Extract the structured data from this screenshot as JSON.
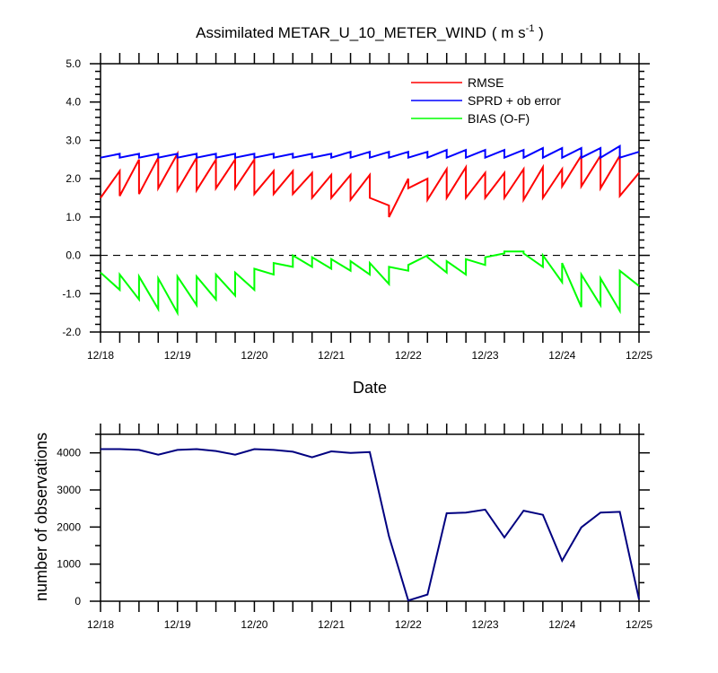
{
  "chart_data": [
    {
      "type": "line",
      "title": "Assimilated METAR_U_10_METER_WIND",
      "title_units_prefix": "( m s",
      "title_units_exp": "-1",
      "title_units_suffix": " )",
      "xlabel": "Date",
      "ylabel": "",
      "x_tick_labels": [
        "12/18",
        "12/19",
        "12/20",
        "12/21",
        "12/22",
        "12/23",
        "12/24",
        "12/25"
      ],
      "x_range": [
        0,
        7
      ],
      "ylim": [
        -2.0,
        5.0
      ],
      "y_ticks": [
        -2.0,
        -1.0,
        0.0,
        1.0,
        2.0,
        3.0,
        4.0,
        5.0
      ],
      "y_tick_labels": [
        "-2.0",
        "-1.0",
        "0.0",
        "1.0",
        "2.0",
        "3.0",
        "4.0",
        "5.0"
      ],
      "reference_line": {
        "y": 0.0,
        "style": "dashed"
      },
      "legend_position": "top-right",
      "series": [
        {
          "name": "RMSE",
          "color": "#ff0000",
          "x": [
            0.0,
            0.25,
            0.25,
            0.5,
            0.5,
            0.75,
            0.75,
            1.0,
            1.0,
            1.25,
            1.25,
            1.5,
            1.5,
            1.75,
            1.75,
            2.0,
            2.0,
            2.25,
            2.25,
            2.5,
            2.5,
            2.75,
            2.75,
            3.0,
            3.0,
            3.25,
            3.25,
            3.5,
            3.5,
            3.75,
            3.75,
            4.0,
            4.0,
            4.25,
            4.25,
            4.5,
            4.5,
            4.75,
            4.75,
            5.0,
            5.0,
            5.25,
            5.25,
            5.5,
            5.5,
            5.75,
            5.75,
            6.0,
            6.0,
            6.25,
            6.25,
            6.5,
            6.5,
            6.75,
            6.75,
            7.0
          ],
          "values": [
            1.5,
            2.2,
            1.55,
            2.5,
            1.6,
            2.55,
            1.75,
            2.65,
            1.7,
            2.55,
            1.7,
            2.5,
            1.75,
            2.5,
            1.75,
            2.5,
            1.6,
            2.2,
            1.6,
            2.2,
            1.6,
            2.15,
            1.5,
            2.1,
            1.5,
            2.1,
            1.45,
            2.1,
            1.5,
            1.3,
            1.0,
            2.0,
            1.75,
            2.0,
            1.45,
            2.25,
            1.5,
            2.3,
            1.5,
            2.15,
            1.5,
            2.15,
            1.5,
            2.25,
            1.45,
            2.3,
            1.5,
            2.25,
            1.8,
            2.6,
            1.8,
            2.6,
            1.75,
            2.6,
            1.55,
            2.15
          ]
        },
        {
          "name": "SPRD + ob error",
          "color": "#0000ff",
          "x": [
            0.0,
            0.25,
            0.25,
            0.5,
            0.5,
            0.75,
            0.75,
            1.0,
            1.0,
            1.25,
            1.25,
            1.5,
            1.5,
            1.75,
            1.75,
            2.0,
            2.0,
            2.25,
            2.25,
            2.5,
            2.5,
            2.75,
            2.75,
            3.0,
            3.0,
            3.25,
            3.25,
            3.5,
            3.5,
            3.75,
            3.75,
            4.0,
            4.0,
            4.25,
            4.25,
            4.5,
            4.5,
            4.75,
            4.75,
            5.0,
            5.0,
            5.25,
            5.25,
            5.5,
            5.5,
            5.75,
            5.75,
            6.0,
            6.0,
            6.25,
            6.25,
            6.5,
            6.5,
            6.75,
            6.75,
            7.0
          ],
          "values": [
            2.55,
            2.65,
            2.55,
            2.65,
            2.55,
            2.65,
            2.55,
            2.65,
            2.55,
            2.65,
            2.55,
            2.65,
            2.55,
            2.65,
            2.55,
            2.65,
            2.55,
            2.65,
            2.55,
            2.65,
            2.55,
            2.65,
            2.55,
            2.65,
            2.55,
            2.7,
            2.55,
            2.7,
            2.55,
            2.7,
            2.55,
            2.7,
            2.55,
            2.7,
            2.55,
            2.75,
            2.55,
            2.75,
            2.55,
            2.75,
            2.55,
            2.75,
            2.55,
            2.75,
            2.55,
            2.8,
            2.55,
            2.8,
            2.55,
            2.8,
            2.55,
            2.8,
            2.55,
            2.85,
            2.55,
            2.7
          ]
        },
        {
          "name": "BIAS (O-F)",
          "color": "#00ff00",
          "x": [
            0.0,
            0.25,
            0.25,
            0.5,
            0.5,
            0.75,
            0.75,
            1.0,
            1.0,
            1.25,
            1.25,
            1.5,
            1.5,
            1.75,
            1.75,
            2.0,
            2.0,
            2.25,
            2.25,
            2.5,
            2.5,
            2.75,
            2.75,
            3.0,
            3.0,
            3.25,
            3.25,
            3.5,
            3.5,
            3.75,
            3.75,
            4.0,
            4.0,
            4.25,
            4.25,
            4.5,
            4.5,
            4.75,
            4.75,
            5.0,
            5.0,
            5.25,
            5.25,
            5.5,
            5.5,
            5.75,
            5.75,
            6.0,
            6.0,
            6.25,
            6.25,
            6.5,
            6.5,
            6.75,
            6.75,
            7.0
          ],
          "values": [
            -0.45,
            -0.9,
            -0.5,
            -1.15,
            -0.55,
            -1.4,
            -0.6,
            -1.5,
            -0.55,
            -1.3,
            -0.55,
            -1.15,
            -0.5,
            -1.05,
            -0.45,
            -0.9,
            -0.35,
            -0.5,
            -0.2,
            -0.3,
            0.0,
            -0.3,
            -0.05,
            -0.35,
            -0.1,
            -0.4,
            -0.15,
            -0.5,
            -0.2,
            -0.75,
            -0.3,
            -0.4,
            -0.25,
            0.0,
            -0.05,
            -0.45,
            -0.15,
            -0.5,
            -0.1,
            -0.25,
            -0.05,
            0.05,
            0.1,
            0.1,
            0.05,
            -0.3,
            0.0,
            -0.7,
            -0.2,
            -1.35,
            -0.5,
            -1.3,
            -0.6,
            -1.45,
            -0.4,
            -0.8
          ]
        }
      ]
    },
    {
      "type": "line",
      "title": "",
      "xlabel": "",
      "ylabel": "number of observations",
      "x_tick_labels": [
        "12/18",
        "12/19",
        "12/20",
        "12/21",
        "12/22",
        "12/23",
        "12/24",
        "12/25"
      ],
      "x_range": [
        0,
        7
      ],
      "ylim": [
        0,
        4500
      ],
      "y_ticks": [
        0,
        1000,
        2000,
        3000,
        4000
      ],
      "y_tick_labels": [
        "0",
        "1000",
        "2000",
        "3000",
        "4000"
      ],
      "series": [
        {
          "name": "observations",
          "color": "#000080",
          "x": [
            0.0,
            0.25,
            0.5,
            0.75,
            1.0,
            1.25,
            1.5,
            1.75,
            2.0,
            2.25,
            2.5,
            2.75,
            3.0,
            3.25,
            3.5,
            3.75,
            4.0,
            4.25,
            4.5,
            4.75,
            5.0,
            5.25,
            5.5,
            5.75,
            6.0,
            6.25,
            6.5,
            6.75,
            7.0
          ],
          "values": [
            4100,
            4100,
            4080,
            3950,
            4080,
            4100,
            4050,
            3950,
            4100,
            4080,
            4030,
            3880,
            4040,
            4000,
            4020,
            1750,
            20,
            180,
            2370,
            2390,
            2470,
            1720,
            2440,
            2330,
            1090,
            1990,
            2390,
            2410,
            50
          ]
        }
      ]
    }
  ]
}
